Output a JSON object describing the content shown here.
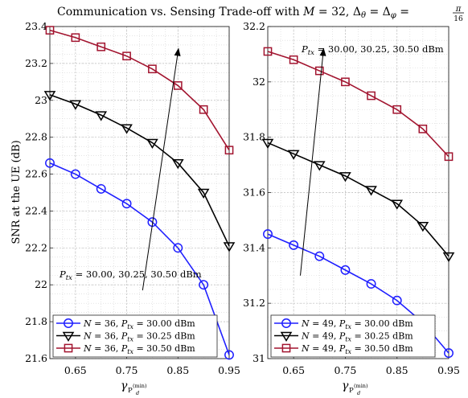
{
  "title_parts": {
    "lead": "Communication vs. Sensing Trade-off with ",
    "m_var": "M",
    "m_eq": " = 32, ",
    "delta": "Δ",
    "theta": "θ",
    "eq": " = ",
    "phi": "φ",
    "eq2": " = ",
    "frac_num": "π",
    "frac_den": "16"
  },
  "ylabel": "SNR at the UE (dB)",
  "xlabel_parts": {
    "gamma": "γ",
    "sub": "P",
    "sub2": "d",
    "sup": "(min)"
  },
  "chart_data": [
    {
      "type": "line",
      "panel": "left",
      "x": [
        0.6,
        0.65,
        0.7,
        0.75,
        0.8,
        0.85,
        0.9,
        0.95
      ],
      "xlim": [
        0.6,
        0.95
      ],
      "ylim": [
        21.6,
        23.4
      ],
      "xticks": [
        "0.65",
        "0.75",
        "0.85",
        "0.95"
      ],
      "xtick_values": [
        0.65,
        0.75,
        0.85,
        0.95
      ],
      "yticks": [
        "21.6",
        "21.8",
        "22",
        "22.2",
        "22.4",
        "22.6",
        "22.8",
        "23",
        "23.2",
        "23.4"
      ],
      "ytick_values": [
        21.6,
        21.8,
        22.0,
        22.2,
        22.4,
        22.6,
        22.8,
        23.0,
        23.2,
        23.4
      ],
      "grid": true,
      "legend_position": "bottom-left",
      "series": [
        {
          "name": "N = 36, P_tx = 30.00 dBm",
          "n": "36",
          "p": "30.00",
          "marker": "circle",
          "color": "#1f1fff",
          "values": [
            22.66,
            22.6,
            22.52,
            22.44,
            22.34,
            22.2,
            22.0,
            21.62
          ]
        },
        {
          "name": "N = 36, P_tx = 30.25 dBm",
          "n": "36",
          "p": "30.25",
          "marker": "triangle-down",
          "color": "#000000",
          "values": [
            23.03,
            22.98,
            22.92,
            22.85,
            22.77,
            22.66,
            22.5,
            22.21
          ]
        },
        {
          "name": "N = 36, P_tx = 30.50 dBm",
          "n": "36",
          "p": "30.50",
          "marker": "square",
          "color": "#a2142f",
          "values": [
            23.38,
            23.34,
            23.29,
            23.24,
            23.17,
            23.08,
            22.95,
            22.73
          ]
        }
      ],
      "annotation": {
        "text_var": "P",
        "text_sub": "tx",
        "text_rest": " = 30.00, 30.25, 30.50 dBm",
        "arrow_from": [
          0.781,
          21.97
        ],
        "arrow_to": [
          0.851,
          23.28
        ]
      }
    },
    {
      "type": "line",
      "panel": "right",
      "x": [
        0.6,
        0.65,
        0.7,
        0.75,
        0.8,
        0.85,
        0.9,
        0.95
      ],
      "xlim": [
        0.6,
        0.95
      ],
      "ylim": [
        31.0,
        32.2
      ],
      "xticks": [
        "0.65",
        "0.75",
        "0.85",
        "0.95"
      ],
      "xtick_values": [
        0.65,
        0.75,
        0.85,
        0.95
      ],
      "yticks": [
        "31",
        "31.2",
        "31.4",
        "31.6",
        "31.8",
        "32",
        "32.2"
      ],
      "ytick_values": [
        31.0,
        31.2,
        31.4,
        31.6,
        31.8,
        32.0,
        32.2
      ],
      "grid": true,
      "legend_position": "bottom-left",
      "series": [
        {
          "name": "N = 49, P_tx = 30.00 dBm",
          "n": "49",
          "p": "30.00",
          "marker": "circle",
          "color": "#1f1fff",
          "values": [
            31.45,
            31.41,
            31.37,
            31.32,
            31.27,
            31.21,
            31.13,
            31.02
          ]
        },
        {
          "name": "N = 49, P_tx = 30.25 dBm",
          "n": "49",
          "p": "30.25",
          "marker": "triangle-down",
          "color": "#000000",
          "values": [
            31.78,
            31.74,
            31.7,
            31.66,
            31.61,
            31.56,
            31.48,
            31.37
          ]
        },
        {
          "name": "N = 49, P_tx = 30.50 dBm",
          "n": "49",
          "p": "30.50",
          "marker": "square",
          "color": "#a2142f",
          "values": [
            32.11,
            32.08,
            32.04,
            32.0,
            31.95,
            31.9,
            31.83,
            31.73
          ]
        }
      ],
      "annotation": {
        "text_var": "P",
        "text_sub": "tx",
        "text_rest": " = 30.00, 30.25, 30.50 dBm",
        "arrow_from": [
          0.663,
          31.3
        ],
        "arrow_to": [
          0.708,
          32.12
        ]
      }
    }
  ]
}
